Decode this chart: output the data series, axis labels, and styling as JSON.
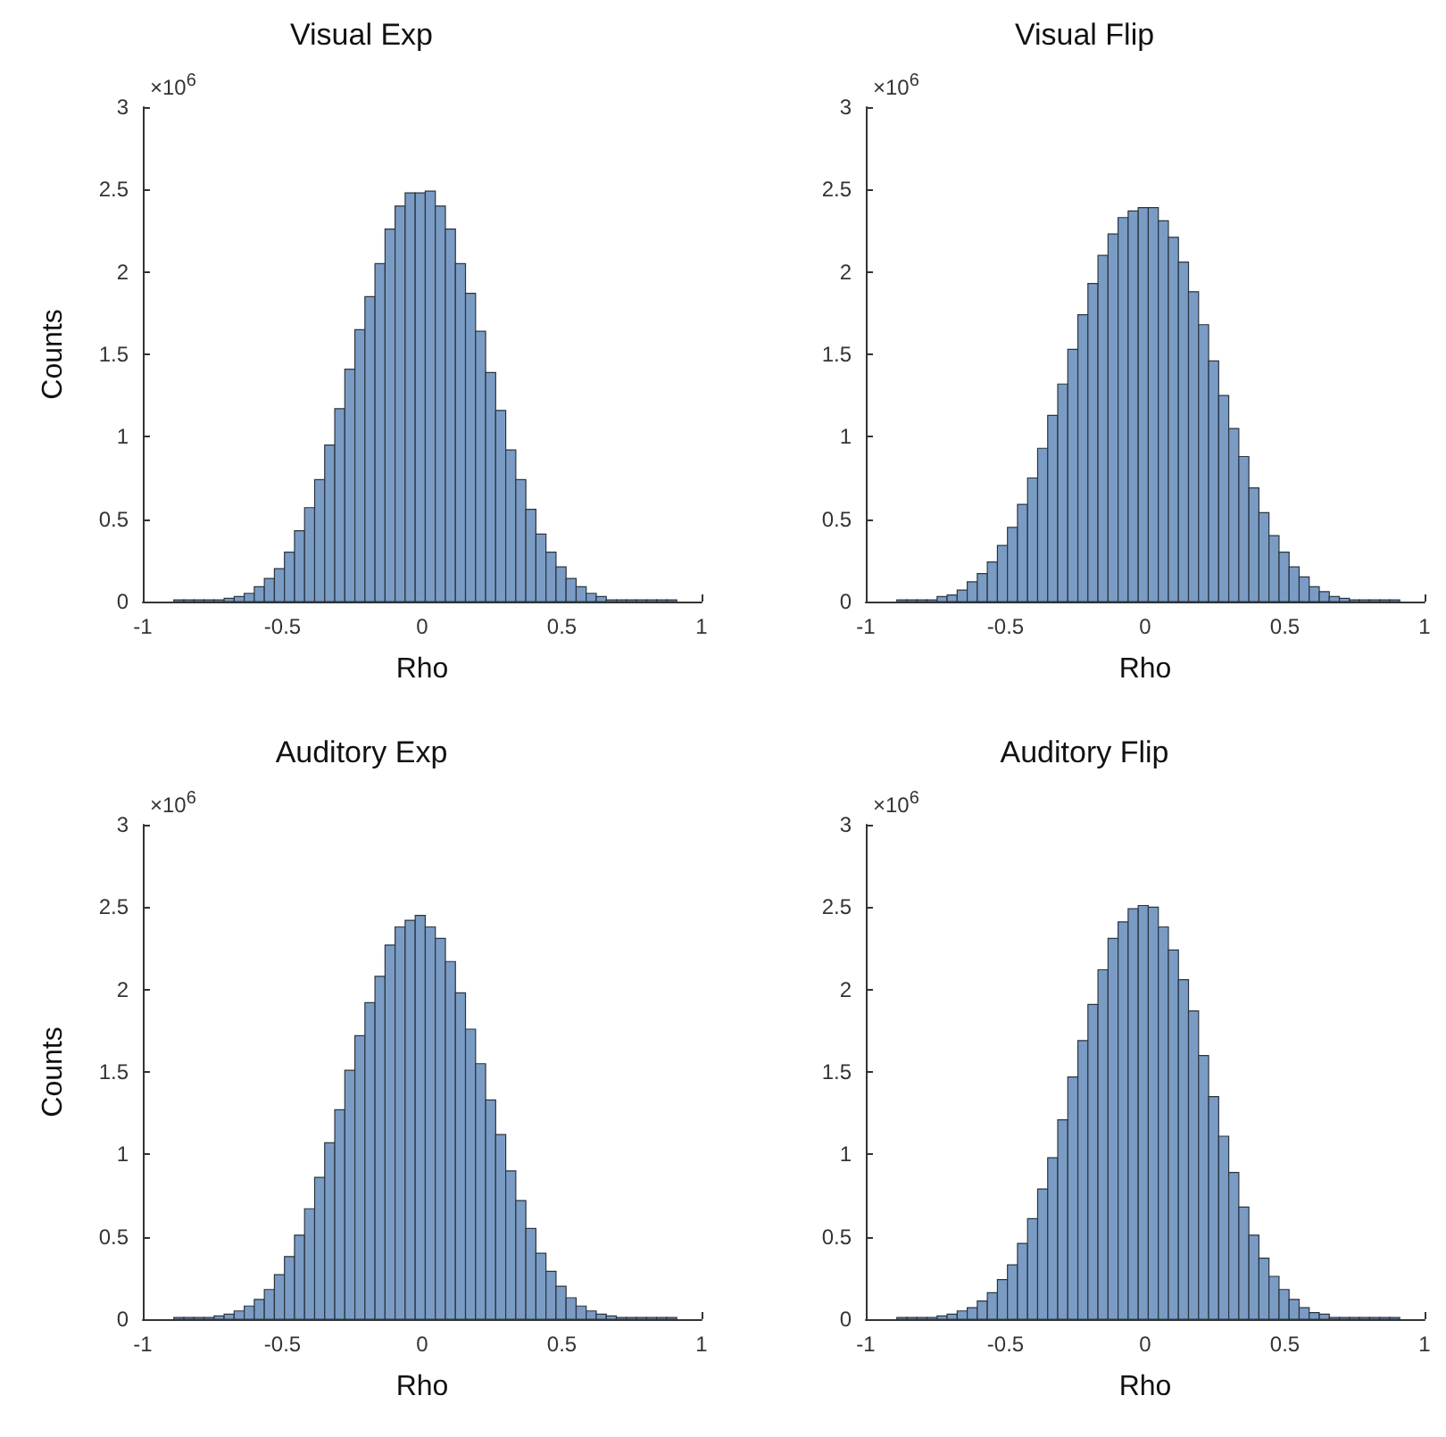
{
  "chart_data": [
    {
      "type": "histogram",
      "title": "Visual Exp",
      "xlabel": "Rho",
      "ylabel": "Counts",
      "annotations": [
        "×10$^{6}$"
      ],
      "color": "#7a9cc4",
      "xlim": [
        -1,
        1
      ],
      "xticks": [
        -1,
        -0.5,
        0,
        0.5,
        1
      ],
      "ylim": [
        0,
        3
      ],
      "yticks": [
        0,
        0.5,
        1,
        1.5,
        2,
        2.5,
        3
      ],
      "bins": [
        -0.889,
        -0.853,
        -0.817,
        -0.781,
        -0.745,
        -0.709,
        -0.673,
        -0.637,
        -0.601,
        -0.565,
        -0.529,
        -0.493,
        -0.457,
        -0.421,
        -0.385,
        -0.349,
        -0.313,
        -0.277,
        -0.241,
        -0.205,
        -0.169,
        -0.133,
        -0.097,
        -0.061,
        -0.025,
        0.011,
        0.047,
        0.083,
        0.119,
        0.155,
        0.191,
        0.227,
        0.263,
        0.299,
        0.335,
        0.371,
        0.407,
        0.443,
        0.479,
        0.515,
        0.551,
        0.587,
        0.623,
        0.659,
        0.695,
        0.731,
        0.767,
        0.803,
        0.839,
        0.875,
        0.911
      ],
      "values": [
        0.01,
        0.01,
        0.01,
        0.01,
        0.01,
        0.02,
        0.03,
        0.05,
        0.09,
        0.14,
        0.2,
        0.3,
        0.43,
        0.57,
        0.74,
        0.95,
        1.17,
        1.41,
        1.65,
        1.85,
        2.05,
        2.26,
        2.4,
        2.48,
        2.48,
        2.49,
        2.4,
        2.26,
        2.05,
        1.87,
        1.64,
        1.39,
        1.16,
        0.92,
        0.74,
        0.56,
        0.41,
        0.3,
        0.21,
        0.14,
        0.09,
        0.05,
        0.03,
        0.01,
        0.01,
        0.01,
        0.01,
        0.01,
        0.01,
        0.01
      ]
    },
    {
      "type": "histogram",
      "title": "Visual Flip",
      "xlabel": "Rho",
      "annotations": [
        "×10$^{6}$"
      ],
      "color": "#7a9cc4",
      "xlim": [
        -1,
        1
      ],
      "xticks": [
        -1,
        -0.5,
        0,
        0.5,
        1
      ],
      "ylim": [
        0,
        3
      ],
      "yticks": [
        0,
        0.5,
        1,
        1.5,
        2,
        2.5,
        3
      ],
      "bins": [
        -0.889,
        -0.853,
        -0.817,
        -0.781,
        -0.745,
        -0.709,
        -0.673,
        -0.637,
        -0.601,
        -0.565,
        -0.529,
        -0.493,
        -0.457,
        -0.421,
        -0.385,
        -0.349,
        -0.313,
        -0.277,
        -0.241,
        -0.205,
        -0.169,
        -0.133,
        -0.097,
        -0.061,
        -0.025,
        0.011,
        0.047,
        0.083,
        0.119,
        0.155,
        0.191,
        0.227,
        0.263,
        0.299,
        0.335,
        0.371,
        0.407,
        0.443,
        0.479,
        0.515,
        0.551,
        0.587,
        0.623,
        0.659,
        0.695,
        0.731,
        0.767,
        0.803,
        0.839,
        0.875,
        0.911
      ],
      "values": [
        0.01,
        0.01,
        0.01,
        0.01,
        0.03,
        0.04,
        0.07,
        0.12,
        0.17,
        0.24,
        0.34,
        0.45,
        0.59,
        0.75,
        0.93,
        1.13,
        1.32,
        1.53,
        1.74,
        1.93,
        2.1,
        2.23,
        2.33,
        2.37,
        2.39,
        2.39,
        2.31,
        2.21,
        2.06,
        1.88,
        1.68,
        1.46,
        1.25,
        1.05,
        0.88,
        0.69,
        0.54,
        0.4,
        0.3,
        0.21,
        0.15,
        0.09,
        0.06,
        0.03,
        0.02,
        0.01,
        0.01,
        0.01,
        0.01,
        0.01
      ]
    },
    {
      "type": "histogram",
      "title": "Auditory Exp",
      "xlabel": "Rho",
      "ylabel": "Counts",
      "annotations": [
        "×10$^{6}$"
      ],
      "color": "#7a9cc4",
      "xlim": [
        -1,
        1
      ],
      "xticks": [
        -1,
        -0.5,
        0,
        0.5,
        1
      ],
      "ylim": [
        0,
        3
      ],
      "yticks": [
        0,
        0.5,
        1,
        1.5,
        2,
        2.5,
        3
      ],
      "bins": [
        -0.889,
        -0.853,
        -0.817,
        -0.781,
        -0.745,
        -0.709,
        -0.673,
        -0.637,
        -0.601,
        -0.565,
        -0.529,
        -0.493,
        -0.457,
        -0.421,
        -0.385,
        -0.349,
        -0.313,
        -0.277,
        -0.241,
        -0.205,
        -0.169,
        -0.133,
        -0.097,
        -0.061,
        -0.025,
        0.011,
        0.047,
        0.083,
        0.119,
        0.155,
        0.191,
        0.227,
        0.263,
        0.299,
        0.335,
        0.371,
        0.407,
        0.443,
        0.479,
        0.515,
        0.551,
        0.587,
        0.623,
        0.659,
        0.695,
        0.731,
        0.767,
        0.803,
        0.839,
        0.875,
        0.911
      ],
      "values": [
        0.01,
        0.01,
        0.01,
        0.01,
        0.02,
        0.03,
        0.05,
        0.08,
        0.12,
        0.18,
        0.27,
        0.38,
        0.51,
        0.67,
        0.86,
        1.07,
        1.27,
        1.51,
        1.72,
        1.92,
        2.08,
        2.27,
        2.38,
        2.42,
        2.45,
        2.38,
        2.31,
        2.17,
        1.98,
        1.76,
        1.55,
        1.33,
        1.12,
        0.9,
        0.72,
        0.55,
        0.4,
        0.29,
        0.2,
        0.13,
        0.08,
        0.05,
        0.03,
        0.02,
        0.01,
        0.01,
        0.01,
        0.01,
        0.01,
        0.01
      ]
    },
    {
      "type": "histogram",
      "title": "Auditory Flip",
      "xlabel": "Rho",
      "annotations": [
        "×10$^{6}$"
      ],
      "color": "#7a9cc4",
      "xlim": [
        -1,
        1
      ],
      "xticks": [
        -1,
        -0.5,
        0,
        0.5,
        1
      ],
      "ylim": [
        0,
        3
      ],
      "yticks": [
        0,
        0.5,
        1,
        1.5,
        2,
        2.5,
        3
      ],
      "bins": [
        -0.889,
        -0.853,
        -0.817,
        -0.781,
        -0.745,
        -0.709,
        -0.673,
        -0.637,
        -0.601,
        -0.565,
        -0.529,
        -0.493,
        -0.457,
        -0.421,
        -0.385,
        -0.349,
        -0.313,
        -0.277,
        -0.241,
        -0.205,
        -0.169,
        -0.133,
        -0.097,
        -0.061,
        -0.025,
        0.011,
        0.047,
        0.083,
        0.119,
        0.155,
        0.191,
        0.227,
        0.263,
        0.299,
        0.335,
        0.371,
        0.407,
        0.443,
        0.479,
        0.515,
        0.551,
        0.587,
        0.623,
        0.659,
        0.695,
        0.731,
        0.767,
        0.803,
        0.839,
        0.875,
        0.911
      ],
      "values": [
        0.01,
        0.01,
        0.01,
        0.01,
        0.02,
        0.03,
        0.05,
        0.07,
        0.11,
        0.16,
        0.24,
        0.33,
        0.46,
        0.61,
        0.79,
        0.98,
        1.21,
        1.47,
        1.69,
        1.91,
        2.12,
        2.31,
        2.41,
        2.49,
        2.51,
        2.5,
        2.38,
        2.24,
        2.06,
        1.87,
        1.6,
        1.35,
        1.11,
        0.89,
        0.68,
        0.51,
        0.37,
        0.26,
        0.18,
        0.12,
        0.07,
        0.04,
        0.03,
        0.01,
        0.01,
        0.01,
        0.01,
        0.01,
        0.01,
        0.01
      ]
    }
  ]
}
